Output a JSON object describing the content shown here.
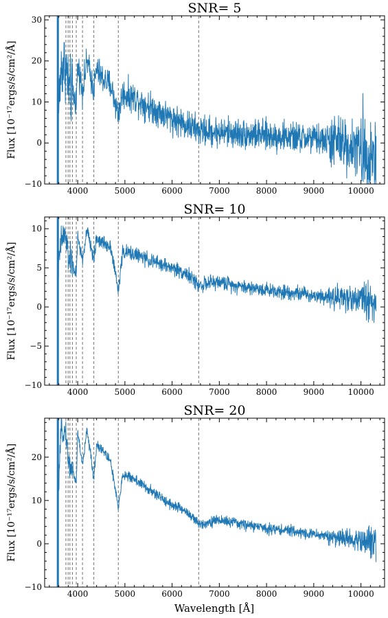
{
  "figure": {
    "xlabel": "Wavelength [Å]"
  },
  "chart_data": [
    {
      "type": "line",
      "title": "SNR= 5",
      "ylabel": "Flux [10⁻¹⁷ergs/s/cm²/Å]",
      "xlim": [
        3300,
        10500
      ],
      "ylim": [
        -10,
        31
      ],
      "xticks": [
        4000,
        5000,
        6000,
        7000,
        8000,
        9000,
        10000
      ],
      "yticks": [
        -10,
        0,
        10,
        20,
        30
      ],
      "reference_lines_x": [
        3750,
        3798,
        3835,
        3889,
        3970,
        4102,
        4341,
        4861,
        6563
      ],
      "series": [
        {
          "color": "#1f77b4",
          "noise_amplitude": 1.8,
          "x": [
            3580,
            3650,
            3700,
            3750,
            3798,
            3835,
            3889,
            3970,
            4000,
            4102,
            4200,
            4341,
            4400,
            4500,
            4700,
            4861,
            4950,
            5200,
            5500,
            6000,
            6300,
            6563,
            7000,
            7500,
            8000,
            8500,
            9000,
            9500,
            10000,
            10200,
            10320
          ],
          "y": [
            6,
            18,
            19,
            19,
            14,
            13,
            12,
            10,
            19,
            13,
            20,
            13,
            18,
            16,
            14,
            7,
            12,
            11,
            9,
            6,
            4.5,
            3,
            2.6,
            2.2,
            1.8,
            1.4,
            1,
            0.3,
            -1.5,
            -2.5,
            -3.5
          ]
        }
      ]
    },
    {
      "type": "line",
      "title": "SNR= 10",
      "ylabel": "Flux [10⁻¹⁷ergs/s/cm²/Å]",
      "xlim": [
        3300,
        10500
      ],
      "ylim": [
        -10,
        11.5
      ],
      "xticks": [
        4000,
        5000,
        6000,
        7000,
        8000,
        9000,
        10000
      ],
      "yticks": [
        -10,
        -5,
        0,
        5,
        10
      ],
      "reference_lines_x": [
        3750,
        3798,
        3835,
        3889,
        3970,
        4102,
        4341,
        4861,
        6563
      ],
      "series": [
        {
          "color": "#1f77b4",
          "noise_amplitude": 0.45,
          "x": [
            3580,
            3650,
            3700,
            3750,
            3798,
            3835,
            3889,
            3970,
            4000,
            4102,
            4200,
            4341,
            4400,
            4500,
            4700,
            4861,
            4950,
            5200,
            5500,
            6000,
            6300,
            6563,
            7000,
            7500,
            8000,
            8500,
            9000,
            9500,
            10000,
            10200,
            10320
          ],
          "y": [
            4,
            8.5,
            9,
            9,
            6.5,
            6,
            5.5,
            4,
            9,
            6,
            9.8,
            6,
            8.8,
            8.3,
            7.8,
            2,
            7,
            6.8,
            6,
            5,
            4.3,
            2.8,
            3.2,
            2.6,
            2.2,
            1.9,
            1.5,
            1.3,
            1,
            0.8,
            0.5
          ]
        }
      ]
    },
    {
      "type": "line",
      "title": "SNR= 20",
      "ylabel": "Flux [10⁻¹⁷ergs/s/cm²/Å]",
      "xlim": [
        3300,
        10500
      ],
      "ylim": [
        -10,
        29
      ],
      "xticks": [
        4000,
        5000,
        6000,
        7000,
        8000,
        9000,
        10000
      ],
      "yticks": [
        -10,
        0,
        10,
        20
      ],
      "reference_lines_x": [
        3750,
        3798,
        3835,
        3889,
        3970,
        4102,
        4341,
        4861,
        6563
      ],
      "series": [
        {
          "color": "#1f77b4",
          "noise_amplitude": 0.6,
          "x": [
            3580,
            3650,
            3700,
            3750,
            3798,
            3835,
            3889,
            3970,
            4000,
            4102,
            4200,
            4341,
            4400,
            4500,
            4700,
            4861,
            4950,
            5200,
            5500,
            6000,
            6300,
            6563,
            7000,
            7500,
            8000,
            8500,
            9000,
            9500,
            10000,
            10200,
            10320
          ],
          "y": [
            10,
            26,
            26,
            26,
            19,
            18,
            17,
            14,
            26,
            18,
            26.5,
            15,
            23,
            22,
            19,
            8,
            16,
            15,
            12.5,
            9,
            7.5,
            4.5,
            5.5,
            4.5,
            3.6,
            3,
            2.2,
            1.5,
            0.7,
            0.5,
            0.3
          ]
        }
      ]
    }
  ]
}
